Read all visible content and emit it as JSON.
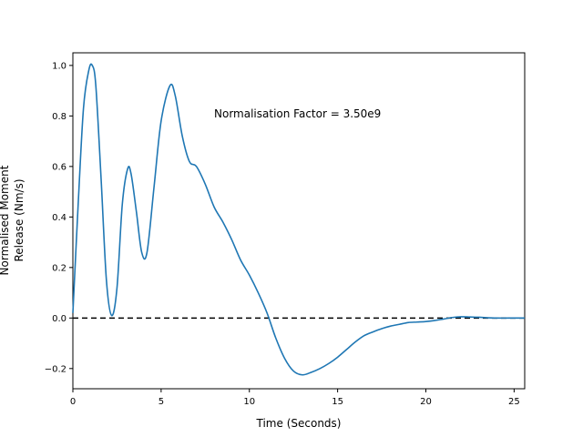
{
  "chart_data": {
    "type": "line",
    "title": "",
    "xlabel": "Time (Seconds)",
    "ylabel_lines": [
      "Normalised Moment",
      "Release (Nm/s)"
    ],
    "xlim": [
      0,
      25.6
    ],
    "ylim": [
      -0.28,
      1.05
    ],
    "x_ticks": [
      0,
      5,
      10,
      15,
      20,
      25
    ],
    "y_ticks": [
      -0.2,
      0.0,
      0.2,
      0.4,
      0.6,
      0.8,
      1.0
    ],
    "x_tick_labels": [
      "0",
      "5",
      "10",
      "15",
      "20",
      "25"
    ],
    "y_tick_labels": [
      "−0.2",
      "0.0",
      "0.2",
      "0.4",
      "0.6",
      "0.8",
      "1.0"
    ],
    "grid": false,
    "annotation": "Normalisation Factor = 3.50e9",
    "reference_line": {
      "y": 0.0,
      "style": "dashed",
      "color": "#000000"
    },
    "series": [
      {
        "color": "#1f77b4",
        "x": [
          0,
          0.3,
          0.6,
          0.9,
          1.1,
          1.3,
          1.6,
          1.9,
          2.2,
          2.5,
          2.8,
          3.1,
          3.3,
          3.6,
          3.9,
          4.2,
          4.6,
          5.0,
          5.5,
          5.8,
          6.2,
          6.6,
          7.0,
          7.5,
          8.0,
          8.5,
          9.0,
          9.5,
          10.0,
          10.5,
          11.0,
          11.5,
          12.0,
          12.5,
          13.0,
          13.5,
          14.0,
          14.5,
          15.0,
          15.5,
          16.0,
          16.5,
          17.0,
          17.5,
          18.0,
          18.5,
          19.0,
          19.5,
          20.0,
          20.5,
          21.0,
          21.5,
          22.0,
          22.5,
          23.0,
          24.0,
          25.0,
          25.6
        ],
        "y": [
          0.02,
          0.45,
          0.83,
          0.98,
          1.0,
          0.92,
          0.55,
          0.15,
          0.01,
          0.12,
          0.45,
          0.59,
          0.57,
          0.42,
          0.26,
          0.26,
          0.52,
          0.78,
          0.92,
          0.88,
          0.72,
          0.62,
          0.6,
          0.53,
          0.44,
          0.38,
          0.31,
          0.23,
          0.17,
          0.1,
          0.02,
          -0.08,
          -0.16,
          -0.21,
          -0.225,
          -0.215,
          -0.2,
          -0.18,
          -0.155,
          -0.125,
          -0.095,
          -0.07,
          -0.055,
          -0.042,
          -0.032,
          -0.025,
          -0.018,
          -0.016,
          -0.014,
          -0.01,
          -0.004,
          0.002,
          0.005,
          0.004,
          0.003,
          0.0,
          0.0,
          0.0
        ]
      }
    ]
  }
}
